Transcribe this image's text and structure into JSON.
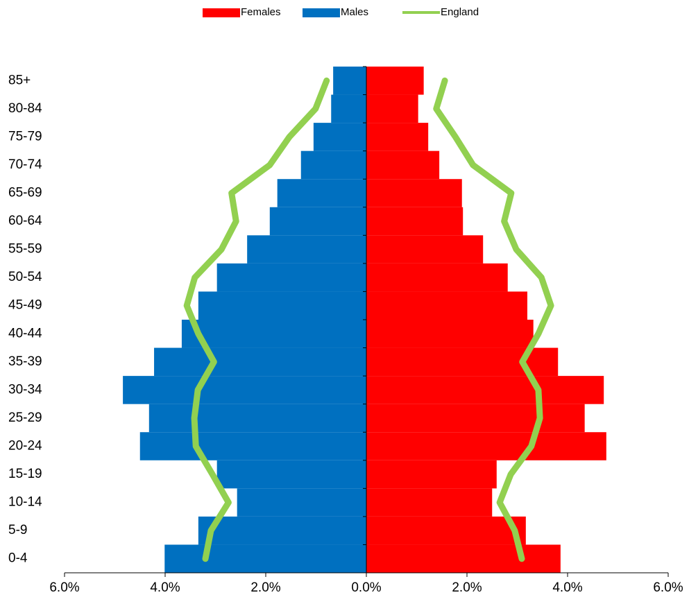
{
  "chart_data": {
    "type": "pyramid",
    "categories": [
      "0-4",
      "5-9",
      "10-14",
      "15-19",
      "20-24",
      "25-29",
      "30-34",
      "35-39",
      "40-44",
      "45-49",
      "50-54",
      "55-59",
      "60-64",
      "65-69",
      "70-74",
      "75-79",
      "80-84",
      "85+"
    ],
    "series": [
      {
        "name": "Females",
        "color": "#ff0000",
        "side": "right",
        "values": [
          3.86,
          3.17,
          2.5,
          2.59,
          4.77,
          4.34,
          4.72,
          3.81,
          3.32,
          3.2,
          2.81,
          2.32,
          1.92,
          1.9,
          1.45,
          1.23,
          1.03,
          1.14
        ]
      },
      {
        "name": "Males",
        "color": "#0070c0",
        "side": "left",
        "values": [
          4.01,
          3.34,
          2.57,
          2.97,
          4.5,
          4.32,
          4.84,
          4.22,
          3.67,
          3.34,
          2.97,
          2.37,
          1.92,
          1.77,
          1.3,
          1.05,
          0.7,
          0.66
        ]
      },
      {
        "name": "England",
        "color": "#92d050",
        "kind": "line",
        "males": [
          3.2,
          3.09,
          2.74,
          3.06,
          3.39,
          3.42,
          3.35,
          3.03,
          3.34,
          3.57,
          3.41,
          2.88,
          2.59,
          2.68,
          1.92,
          1.53,
          1.01,
          0.79
        ],
        "females": [
          3.09,
          2.95,
          2.65,
          2.87,
          3.28,
          3.45,
          3.42,
          3.1,
          3.42,
          3.67,
          3.48,
          2.98,
          2.74,
          2.88,
          2.12,
          1.77,
          1.39,
          1.56
        ]
      }
    ],
    "xlim": [
      -6,
      6
    ],
    "xticks": [
      {
        "value": -6,
        "label": "6.0%"
      },
      {
        "value": -4,
        "label": "4.0%"
      },
      {
        "value": -2,
        "label": "2.0%"
      },
      {
        "value": 0,
        "label": "0.0%"
      },
      {
        "value": 2,
        "label": "2.0%"
      },
      {
        "value": 4,
        "label": "4.0%"
      },
      {
        "value": 6,
        "label": "6.0%"
      }
    ],
    "legend": "top"
  }
}
